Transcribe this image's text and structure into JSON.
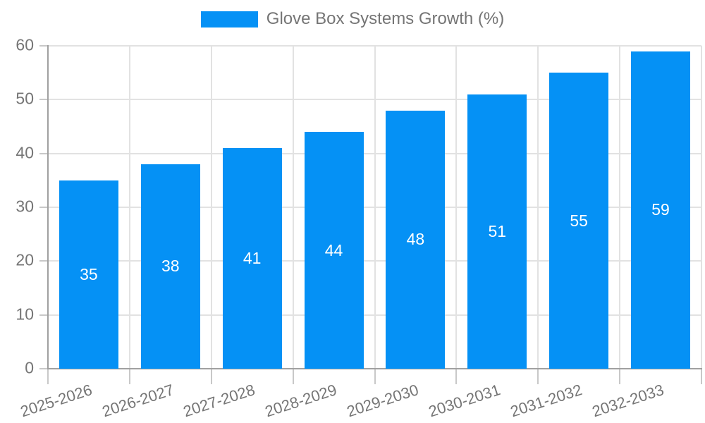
{
  "legend": {
    "label": "Glove Box Systems Growth (%)"
  },
  "chart_data": {
    "type": "bar",
    "title": "",
    "xlabel": "",
    "ylabel": "",
    "categories": [
      "2025-2026",
      "2026-2027",
      "2027-2028",
      "2028-2029",
      "2029-2030",
      "2030-2031",
      "2031-2032",
      "2032-2033"
    ],
    "series": [
      {
        "name": "Glove Box Systems Growth (%)",
        "values": [
          35,
          38,
          41,
          44,
          48,
          51,
          55,
          59
        ]
      }
    ],
    "ylim": [
      0,
      60
    ],
    "yticks": [
      0,
      10,
      20,
      30,
      40,
      50,
      60
    ],
    "grid": true,
    "legend_position": "top",
    "value_labels": "inside-center",
    "x_label_rotation_deg": -18,
    "colors": {
      "bar": "#0591F5",
      "value_label": "#ffffff",
      "axis_text": "#757575",
      "axis_line": "#a0a0a0",
      "tick": "#c8c8c8",
      "gridline": "#e2e2e2",
      "background": "#ffffff"
    }
  }
}
